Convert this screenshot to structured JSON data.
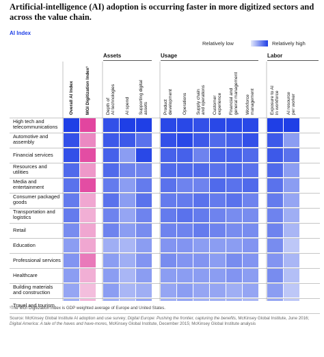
{
  "title": "Artificial-intelligence (AI) adoption is occurring faster in more digitized sectors and across the value chain.",
  "subtitle": "AI Index",
  "legend": {
    "low": "Relatively low",
    "high": "Relatively high"
  },
  "colors": {
    "blue_high": "#1f3fe6",
    "blue_low": "#e4e9fb",
    "pink_high": "#e2459f",
    "pink_low": "#f7dcec",
    "accent": "#1f40e6"
  },
  "footnote": "¹The MGI Digitization Index is GDP weighted average of Europe and United States.",
  "source": {
    "p1": "Source: McKinsey Global Institute AI adoption and use survey; ",
    "i1": "Digital Europe: Pushing the frontier, capturing the benefits",
    "p2": ", McKinsey Global Institute, June 2016; ",
    "i2": "Digital America: A tale of the haves and have-mores",
    "p3": ", McKinsey Global Institute, December 2015; McKinsey Global Institute analysis"
  },
  "chart_data": {
    "type": "heatmap",
    "title": "Artificial-intelligence (AI) adoption is occurring faster in more digitized sectors and across the value chain.",
    "subtitle": "AI Index",
    "scale": "relative (0 = relatively low, 1 = relatively high)",
    "groups": [
      {
        "name": "",
        "columns": [
          "Overall AI Index",
          "MGI Digitization Index¹"
        ]
      },
      {
        "name": "Assets",
        "columns": [
          "Depth of AI technologies",
          "AI spend",
          "Supporting digital assets"
        ]
      },
      {
        "name": "Usage",
        "columns": [
          "Product development",
          "Operations",
          "Supply chain and operations",
          "Customer experience",
          "Financial and general management",
          "Workforce management"
        ]
      },
      {
        "name": "Labor",
        "columns": [
          "Exposure to AI in workforce",
          "AI resource per worker"
        ]
      }
    ],
    "columns": [
      "Overall AI Index",
      "MGI Digitization Index¹",
      "Depth of AI technologies",
      "AI spend",
      "Supporting digital assets",
      "Product development",
      "Operations",
      "Supply chain and operations",
      "Customer experience",
      "Financial and general management",
      "Workforce management",
      "Exposure to AI in workforce",
      "AI resource per worker"
    ],
    "rows": [
      {
        "label": "High tech and telecommunications",
        "values": [
          1.0,
          1.0,
          0.9,
          1.0,
          1.0,
          0.95,
          0.95,
          0.9,
          0.95,
          0.95,
          0.95,
          1.0,
          1.0
        ]
      },
      {
        "label": "Automotive and assembly",
        "values": [
          0.9,
          0.55,
          0.85,
          0.85,
          0.7,
          0.9,
          0.95,
          0.85,
          0.75,
          0.8,
          0.9,
          0.85,
          0.45
        ]
      },
      {
        "label": "Financial services",
        "values": [
          0.9,
          0.95,
          0.8,
          0.45,
          0.95,
          0.8,
          0.8,
          0.6,
          0.8,
          0.8,
          0.75,
          0.85,
          0.7
        ]
      },
      {
        "label": "Resources and utilities",
        "values": [
          0.75,
          0.45,
          0.75,
          0.6,
          0.6,
          0.75,
          0.75,
          0.75,
          0.7,
          0.75,
          0.7,
          0.75,
          0.45
        ]
      },
      {
        "label": "Media and entertainment",
        "values": [
          0.7,
          0.95,
          0.65,
          0.45,
          0.65,
          0.7,
          0.6,
          0.6,
          0.75,
          0.7,
          0.75,
          0.7,
          0.45
        ]
      },
      {
        "label": "Consumer packaged goods",
        "values": [
          0.65,
          0.35,
          0.7,
          0.45,
          0.7,
          0.65,
          0.65,
          0.7,
          0.65,
          0.7,
          0.6,
          0.65,
          0.4
        ]
      },
      {
        "label": "Transportation and logistics",
        "values": [
          0.65,
          0.3,
          0.6,
          0.4,
          0.6,
          0.65,
          0.7,
          0.65,
          0.6,
          0.55,
          0.55,
          0.6,
          0.35
        ]
      },
      {
        "label": "Retail",
        "values": [
          0.55,
          0.35,
          0.6,
          0.45,
          0.55,
          0.6,
          0.6,
          0.65,
          0.6,
          0.55,
          0.55,
          0.6,
          0.3
        ]
      },
      {
        "label": "Education",
        "values": [
          0.45,
          0.35,
          0.35,
          0.3,
          0.45,
          0.5,
          0.5,
          0.45,
          0.45,
          0.45,
          0.5,
          0.55,
          0.2
        ]
      },
      {
        "label": "Professional services",
        "values": [
          0.5,
          0.65,
          0.45,
          0.35,
          0.5,
          0.55,
          0.5,
          0.5,
          0.45,
          0.55,
          0.5,
          0.5,
          0.3
        ]
      },
      {
        "label": "Healthcare",
        "values": [
          0.45,
          0.3,
          0.45,
          0.3,
          0.45,
          0.45,
          0.45,
          0.45,
          0.45,
          0.5,
          0.45,
          0.55,
          0.25
        ]
      },
      {
        "label": "Building materials and construction",
        "values": [
          0.4,
          0.2,
          0.45,
          0.3,
          0.35,
          0.4,
          0.45,
          0.4,
          0.4,
          0.35,
          0.4,
          0.45,
          0.2
        ]
      },
      {
        "label": "Travel and tourism",
        "values": [
          0.35,
          0.25,
          0.35,
          0.25,
          0.4,
          0.35,
          0.4,
          0.35,
          0.35,
          0.35,
          0.3,
          0.4,
          0.2
        ]
      }
    ]
  }
}
